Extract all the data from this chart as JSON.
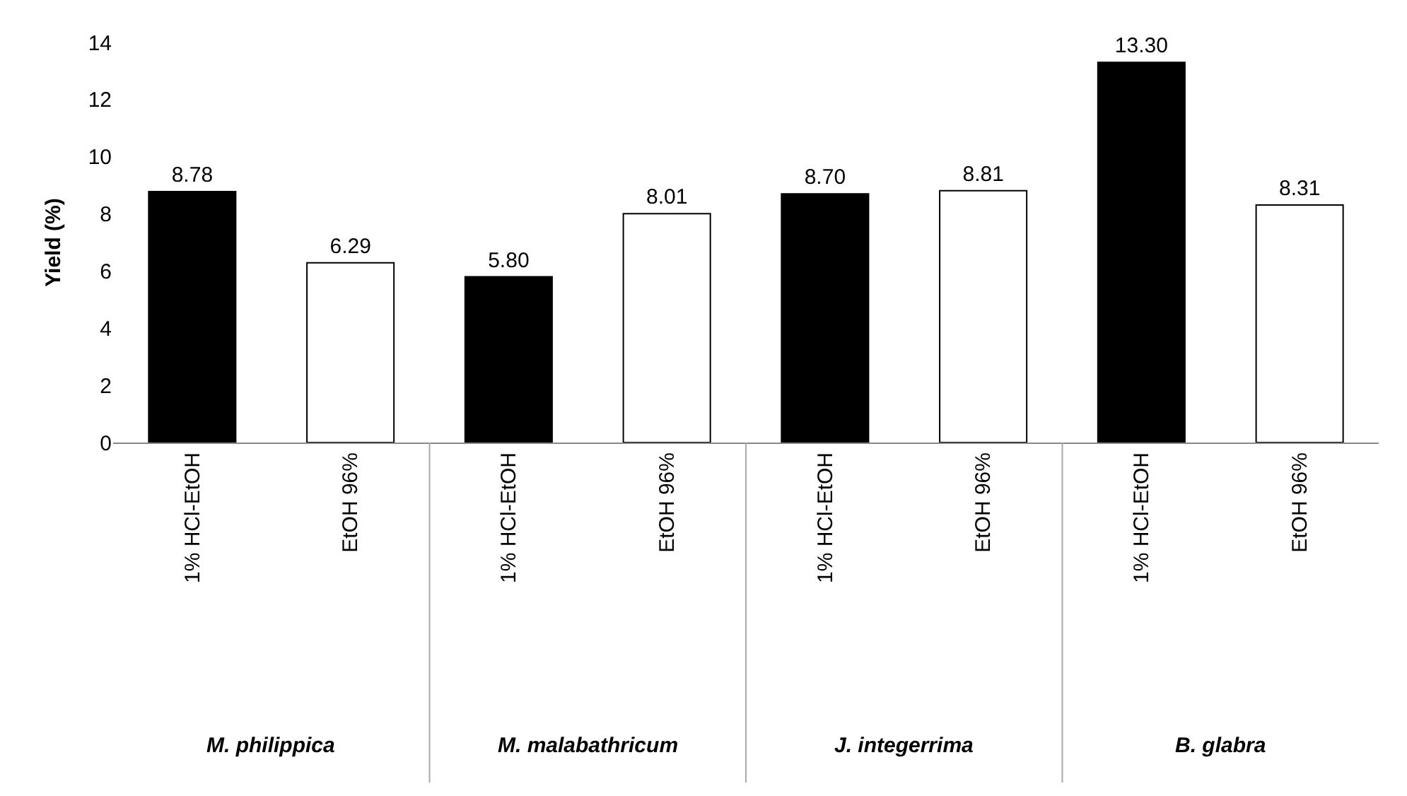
{
  "chart_data": {
    "type": "bar",
    "ylabel": "Yield (%)",
    "categories": [
      "1% HCl-EtOH",
      "EtOH 96%",
      "1% HCl-EtOH",
      "EtOH 96%",
      "1% HCl-EtOH",
      "EtOH 96%",
      "1% HCl-EtOH",
      "EtOH 96%"
    ],
    "values": [
      8.78,
      6.29,
      5.8,
      8.01,
      8.7,
      8.81,
      13.3,
      8.31
    ],
    "value_labels": [
      "8.78",
      "6.29",
      "5.80",
      "8.01",
      "8.70",
      "8.81",
      "13.30",
      "8.31"
    ],
    "colors": [
      "#000000",
      "#ffffff",
      "#000000",
      "#ffffff",
      "#000000",
      "#ffffff",
      "#000000",
      "#ffffff"
    ],
    "annotations": [
      "M. philippica",
      "M. malabathricum",
      "J. integerrima",
      "B. glabra"
    ],
    "ylim": [
      0,
      14
    ],
    "yticks": [
      0,
      2,
      4,
      6,
      8,
      10,
      12,
      14
    ]
  }
}
